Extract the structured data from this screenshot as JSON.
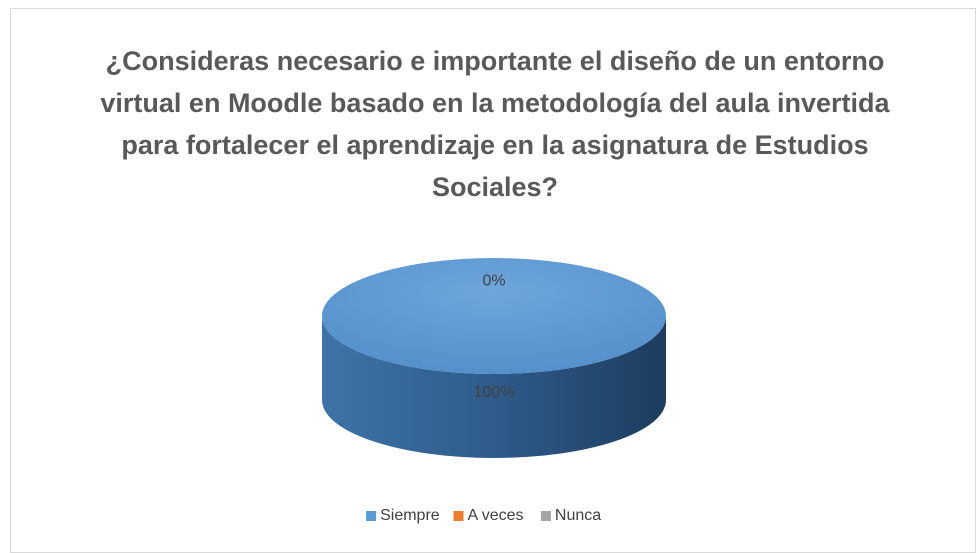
{
  "chart_data": {
    "type": "pie",
    "title": "¿Consideras necesario e importante el diseño de un entorno virtual en Moodle basado en la metodología del aula invertida para fortalecer el aprendizaje en la asignatura de Estudios Sociales?",
    "categories": [
      "Siempre",
      "A veces",
      "Nunca"
    ],
    "values": [
      100,
      0,
      0
    ],
    "value_labels": [
      "100%",
      "0%",
      null
    ],
    "colors": [
      "#5b9bd5",
      "#ed7d31",
      "#a5a5a5"
    ],
    "legend": "bottom"
  }
}
